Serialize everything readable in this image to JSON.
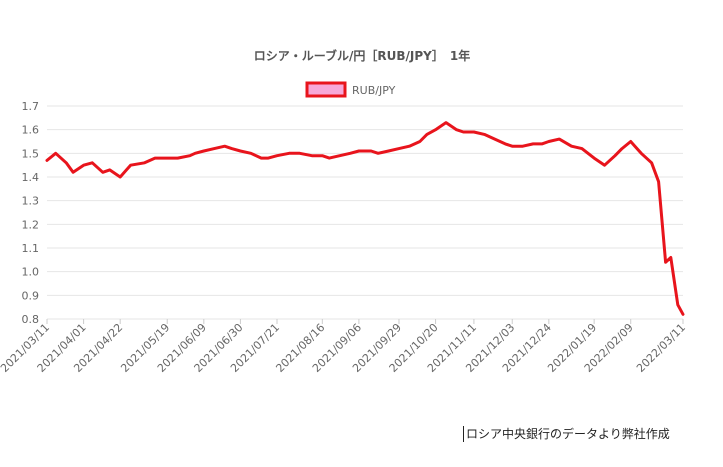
{
  "chart_data": {
    "type": "line",
    "title": "ロシア・ルーブル/円［RUB/JPY］　1年",
    "legend": {
      "position": "top-center"
    },
    "grid": true,
    "ylim": [
      0.8,
      1.7
    ],
    "y_ticks": [
      "1.7",
      "1.6",
      "1.5",
      "1.4",
      "1.3",
      "1.2",
      "1.1",
      "1.0",
      "0.9",
      "0.8"
    ],
    "x_ticks": [
      "2021/03/11",
      "2021/04/01",
      "2021/04/22",
      "2021/05/19",
      "2021/06/09",
      "2021/06/30",
      "2021/07/21",
      "2021/08/16",
      "2021/09/06",
      "2021/09/29",
      "2021/10/20",
      "2021/11/11",
      "2021/12/03",
      "2021/12/24",
      "2022/01/19",
      "2022/02/09",
      "2022/03/11"
    ],
    "series": [
      {
        "name": "RUB/JPY",
        "color": "#e8141c",
        "fill": "#f7a8d8",
        "x": [
          "2021/03/11",
          "2021/03/16",
          "2021/03/22",
          "2021/03/26",
          "2021/04/01",
          "2021/04/06",
          "2021/04/12",
          "2021/04/16",
          "2021/04/22",
          "2021/04/28",
          "2021/05/06",
          "2021/05/12",
          "2021/05/19",
          "2021/05/25",
          "2021/06/01",
          "2021/06/04",
          "2021/06/09",
          "2021/06/15",
          "2021/06/21",
          "2021/06/25",
          "2021/06/30",
          "2021/07/06",
          "2021/07/12",
          "2021/07/16",
          "2021/07/21",
          "2021/07/28",
          "2021/08/03",
          "2021/08/10",
          "2021/08/16",
          "2021/08/20",
          "2021/08/26",
          "2021/09/01",
          "2021/09/06",
          "2021/09/13",
          "2021/09/17",
          "2021/09/23",
          "2021/09/29",
          "2021/10/05",
          "2021/10/11",
          "2021/10/15",
          "2021/10/20",
          "2021/10/26",
          "2021/11/01",
          "2021/11/05",
          "2021/11/11",
          "2021/11/17",
          "2021/11/23",
          "2021/11/29",
          "2021/12/03",
          "2021/12/09",
          "2021/12/15",
          "2021/12/20",
          "2021/12/24",
          "2021/12/30",
          "2022/01/06",
          "2022/01/12",
          "2022/01/19",
          "2022/01/25",
          "2022/01/31",
          "2022/02/04",
          "2022/02/09",
          "2022/02/15",
          "2022/02/21",
          "2022/02/25",
          "2022/03/01",
          "2022/03/04",
          "2022/03/08",
          "2022/03/11"
        ],
        "y": [
          1.47,
          1.5,
          1.46,
          1.42,
          1.45,
          1.46,
          1.42,
          1.43,
          1.4,
          1.45,
          1.46,
          1.48,
          1.48,
          1.48,
          1.49,
          1.5,
          1.51,
          1.52,
          1.53,
          1.52,
          1.51,
          1.5,
          1.48,
          1.48,
          1.49,
          1.5,
          1.5,
          1.49,
          1.49,
          1.48,
          1.49,
          1.5,
          1.51,
          1.51,
          1.5,
          1.51,
          1.52,
          1.53,
          1.55,
          1.58,
          1.6,
          1.63,
          1.6,
          1.59,
          1.59,
          1.58,
          1.56,
          1.54,
          1.53,
          1.53,
          1.54,
          1.54,
          1.55,
          1.56,
          1.53,
          1.52,
          1.48,
          1.45,
          1.49,
          1.52,
          1.55,
          1.5,
          1.46,
          1.38,
          1.04,
          1.06,
          0.86,
          0.82
        ]
      }
    ]
  },
  "source_note": "ロシア中央銀行のデータより弊社作成"
}
